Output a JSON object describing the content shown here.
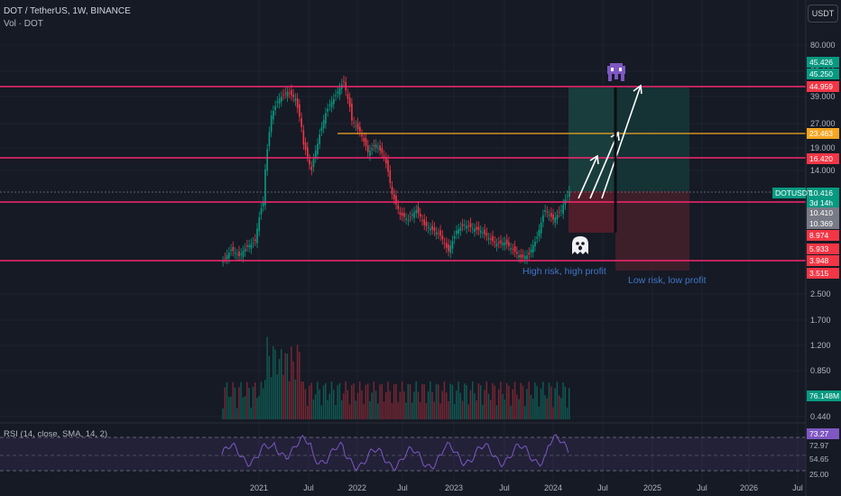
{
  "header": {
    "symbol_line": "DOT / TetherUS, 1W, BINANCE",
    "volume_label": "Vol · DOT",
    "rsi_label": "RSI (14, close, SMA, 14, 2)"
  },
  "currency_button": "USDT",
  "price_axis_ticks": [
    "80.000",
    "55.000",
    "39.000",
    "27.000",
    "19.000",
    "14.000",
    "3.948",
    "2.500",
    "1.700",
    "1.200",
    "0.850",
    "0.440"
  ],
  "price_tags": [
    {
      "text": "45.426",
      "color": "#089981"
    },
    {
      "text": "45.250",
      "color": "#089981"
    },
    {
      "text": "44.959",
      "color": "#f23645"
    },
    {
      "text": "23.463",
      "color": "#f5a623"
    },
    {
      "text": "16.420",
      "color": "#f23645"
    },
    {
      "text": "10.416",
      "color": "#089981"
    },
    {
      "text": "3d 14h",
      "color": "#089981"
    },
    {
      "text": "10.410",
      "color": "#787b86"
    },
    {
      "text": "10.369",
      "color": "#787b86"
    },
    {
      "text": "8.974",
      "color": "#f23645"
    },
    {
      "text": "5.933",
      "color": "#f23645"
    },
    {
      "text": "3.948",
      "color": "#f23645"
    },
    {
      "text": "3.515",
      "color": "#f23645"
    }
  ],
  "symbol_tag": "DOTUSDT",
  "volume_tag": "76.148M",
  "rsi_tags": {
    "value": "73.27",
    "upper": "72.97",
    "lower": "54.65",
    "bottom": "25.00"
  },
  "time_axis": [
    "2021",
    "Jul",
    "2022",
    "Jul",
    "2023",
    "Jul",
    "2024",
    "Jul",
    "2025",
    "Jul",
    "2026",
    "Jul"
  ],
  "annotations": {
    "left": "High risk, high profit",
    "right": "Low risk, low profit"
  },
  "colors": {
    "background": "#161a25",
    "up": "#089981",
    "down": "#f23645",
    "level_line": "#f7266f",
    "orange_line": "#f5a623",
    "annotation": "#3f76c7",
    "rsi": "#7e57c2"
  },
  "chart_data": {
    "type": "candlestick",
    "symbol": "DOTUSDT",
    "interval": "1W",
    "close_series": [
      [
        "2020-08",
        3.9
      ],
      [
        "2020-09",
        4.6
      ],
      [
        "2020-10",
        4.2
      ],
      [
        "2020-11",
        4.8
      ],
      [
        "2020-12",
        5.2
      ],
      [
        "2021-01",
        9
      ],
      [
        "2021-02",
        30
      ],
      [
        "2021-03",
        38
      ],
      [
        "2021-04",
        42
      ],
      [
        "2021-05",
        38
      ],
      [
        "2021-06",
        20
      ],
      [
        "2021-07",
        14
      ],
      [
        "2021-08",
        23
      ],
      [
        "2021-09",
        33
      ],
      [
        "2021-10",
        40
      ],
      [
        "2021-11",
        48
      ],
      [
        "2021-12",
        28
      ],
      [
        "2022-01",
        24
      ],
      [
        "2022-02",
        18
      ],
      [
        "2022-03",
        20
      ],
      [
        "2022-04",
        17
      ],
      [
        "2022-05",
        10
      ],
      [
        "2022-06",
        7.5
      ],
      [
        "2022-07",
        7
      ],
      [
        "2022-08",
        8
      ],
      [
        "2022-09",
        6.5
      ],
      [
        "2022-10",
        6.1
      ],
      [
        "2022-11",
        5.6
      ],
      [
        "2022-12",
        4.5
      ],
      [
        "2023-01",
        6.0
      ],
      [
        "2023-02",
        6.5
      ],
      [
        "2023-03",
        6.2
      ],
      [
        "2023-04",
        6.0
      ],
      [
        "2023-05",
        5.4
      ],
      [
        "2023-06",
        5.0
      ],
      [
        "2023-07",
        5.1
      ],
      [
        "2023-08",
        4.6
      ],
      [
        "2023-09",
        4.1
      ],
      [
        "2023-10",
        4.3
      ],
      [
        "2023-11",
        5.5
      ],
      [
        "2023-12",
        8.0
      ],
      [
        "2024-01",
        7.0
      ],
      [
        "2024-02",
        8.0
      ],
      [
        "2024-03",
        10.4
      ]
    ],
    "levels": [
      44.959,
      23.463,
      16.42,
      10.4,
      3.948
    ],
    "rsi_last": 73.27
  }
}
